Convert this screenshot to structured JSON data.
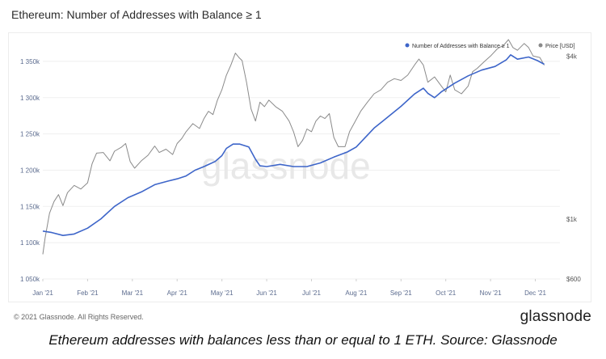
{
  "page": {
    "title": "Ethereum: Number of Addresses with Balance ≥ 1",
    "copyright": "© 2021 Glassnode. All Rights Reserved.",
    "brand": "glassnode",
    "watermark": "glassnode",
    "caption": "Ethereum addresses with balances less than or equal to 1 ETH. Source: Glassnode"
  },
  "chart_data": {
    "type": "line",
    "title": "Ethereum: Number of Addresses with Balance ≥ 1",
    "x_ticks": [
      "Jan '21",
      "Feb '21",
      "Mar '21",
      "Apr '21",
      "May '21",
      "Jun '21",
      "Jul '21",
      "Aug '21",
      "Sep '21",
      "Oct '21",
      "Nov '21",
      "Dec '21"
    ],
    "left_axis": {
      "ticks": [
        "1 050k",
        "1 100k",
        "1 150k",
        "1 200k",
        "1 250k",
        "1 300k",
        "1 350k"
      ],
      "tick_values": [
        1050000,
        1100000,
        1150000,
        1200000,
        1250000,
        1300000,
        1350000
      ],
      "ylim": [
        1050000,
        1380000
      ]
    },
    "right_axis": {
      "scale": "log",
      "ticks": [
        "$600",
        "$1k",
        "$4k"
      ],
      "tick_values": [
        600,
        1000,
        4000
      ],
      "ylim": [
        600,
        4600
      ]
    },
    "grid": true,
    "legend_position": "top-right",
    "series": [
      {
        "name": "Number of Addresses with Balance ≥ 1",
        "axis": "left",
        "color": "#3d65c9",
        "points": [
          [
            0.0,
            1116000
          ],
          [
            0.2,
            1114000
          ],
          [
            0.45,
            1110000
          ],
          [
            0.7,
            1112000
          ],
          [
            1.0,
            1120000
          ],
          [
            1.3,
            1133000
          ],
          [
            1.6,
            1150000
          ],
          [
            1.9,
            1162000
          ],
          [
            2.2,
            1170000
          ],
          [
            2.5,
            1180000
          ],
          [
            2.8,
            1185000
          ],
          [
            3.0,
            1188000
          ],
          [
            3.2,
            1192000
          ],
          [
            3.4,
            1200000
          ],
          [
            3.6,
            1205000
          ],
          [
            3.85,
            1212000
          ],
          [
            4.0,
            1220000
          ],
          [
            4.1,
            1230000
          ],
          [
            4.25,
            1236000
          ],
          [
            4.4,
            1236000
          ],
          [
            4.6,
            1232000
          ],
          [
            4.75,
            1215000
          ],
          [
            4.85,
            1206000
          ],
          [
            5.0,
            1205000
          ],
          [
            5.3,
            1208000
          ],
          [
            5.6,
            1205000
          ],
          [
            5.9,
            1205000
          ],
          [
            6.2,
            1210000
          ],
          [
            6.5,
            1218000
          ],
          [
            6.8,
            1225000
          ],
          [
            7.0,
            1232000
          ],
          [
            7.2,
            1245000
          ],
          [
            7.4,
            1258000
          ],
          [
            7.6,
            1268000
          ],
          [
            7.8,
            1278000
          ],
          [
            8.0,
            1288000
          ],
          [
            8.3,
            1305000
          ],
          [
            8.5,
            1313000
          ],
          [
            8.6,
            1306000
          ],
          [
            8.75,
            1300000
          ],
          [
            8.9,
            1308000
          ],
          [
            9.2,
            1320000
          ],
          [
            9.5,
            1330000
          ],
          [
            9.8,
            1338000
          ],
          [
            10.1,
            1343000
          ],
          [
            10.35,
            1352000
          ],
          [
            10.45,
            1359000
          ],
          [
            10.6,
            1353000
          ],
          [
            10.85,
            1356000
          ],
          [
            11.05,
            1351000
          ],
          [
            11.2,
            1346000
          ]
        ]
      },
      {
        "name": "Price [USD]",
        "axis": "right",
        "color": "#8a8a8a",
        "points": [
          [
            0.0,
            740
          ],
          [
            0.05,
            850
          ],
          [
            0.15,
            1050
          ],
          [
            0.25,
            1160
          ],
          [
            0.35,
            1230
          ],
          [
            0.45,
            1120
          ],
          [
            0.55,
            1250
          ],
          [
            0.7,
            1330
          ],
          [
            0.85,
            1290
          ],
          [
            1.0,
            1360
          ],
          [
            1.1,
            1600
          ],
          [
            1.2,
            1750
          ],
          [
            1.35,
            1760
          ],
          [
            1.5,
            1640
          ],
          [
            1.6,
            1780
          ],
          [
            1.75,
            1840
          ],
          [
            1.85,
            1900
          ],
          [
            1.95,
            1630
          ],
          [
            2.05,
            1540
          ],
          [
            2.2,
            1640
          ],
          [
            2.35,
            1720
          ],
          [
            2.5,
            1860
          ],
          [
            2.6,
            1760
          ],
          [
            2.75,
            1810
          ],
          [
            2.9,
            1730
          ],
          [
            3.0,
            1900
          ],
          [
            3.1,
            1980
          ],
          [
            3.2,
            2100
          ],
          [
            3.35,
            2250
          ],
          [
            3.5,
            2160
          ],
          [
            3.6,
            2350
          ],
          [
            3.7,
            2500
          ],
          [
            3.8,
            2430
          ],
          [
            3.9,
            2750
          ],
          [
            4.0,
            3000
          ],
          [
            4.1,
            3400
          ],
          [
            4.2,
            3700
          ],
          [
            4.3,
            4100
          ],
          [
            4.38,
            3950
          ],
          [
            4.45,
            3850
          ],
          [
            4.55,
            3200
          ],
          [
            4.65,
            2550
          ],
          [
            4.75,
            2300
          ],
          [
            4.85,
            2700
          ],
          [
            4.95,
            2600
          ],
          [
            5.05,
            2750
          ],
          [
            5.2,
            2600
          ],
          [
            5.35,
            2500
          ],
          [
            5.5,
            2300
          ],
          [
            5.6,
            2100
          ],
          [
            5.7,
            1850
          ],
          [
            5.8,
            1950
          ],
          [
            5.9,
            2150
          ],
          [
            6.0,
            2100
          ],
          [
            6.1,
            2300
          ],
          [
            6.2,
            2400
          ],
          [
            6.3,
            2350
          ],
          [
            6.4,
            2450
          ],
          [
            6.5,
            2000
          ],
          [
            6.6,
            1850
          ],
          [
            6.75,
            1850
          ],
          [
            6.85,
            2100
          ],
          [
            6.95,
            2250
          ],
          [
            7.1,
            2500
          ],
          [
            7.25,
            2700
          ],
          [
            7.4,
            2900
          ],
          [
            7.55,
            3000
          ],
          [
            7.7,
            3200
          ],
          [
            7.85,
            3300
          ],
          [
            8.0,
            3250
          ],
          [
            8.15,
            3400
          ],
          [
            8.3,
            3700
          ],
          [
            8.4,
            3900
          ],
          [
            8.5,
            3700
          ],
          [
            8.6,
            3200
          ],
          [
            8.75,
            3350
          ],
          [
            8.9,
            3100
          ],
          [
            9.0,
            2950
          ],
          [
            9.1,
            3400
          ],
          [
            9.2,
            3000
          ],
          [
            9.35,
            2900
          ],
          [
            9.5,
            3100
          ],
          [
            9.6,
            3500
          ],
          [
            9.7,
            3600
          ],
          [
            9.85,
            3800
          ],
          [
            10.0,
            4000
          ],
          [
            10.15,
            4250
          ],
          [
            10.3,
            4400
          ],
          [
            10.4,
            4600
          ],
          [
            10.5,
            4300
          ],
          [
            10.6,
            4200
          ],
          [
            10.75,
            4450
          ],
          [
            10.85,
            4300
          ],
          [
            10.95,
            4000
          ],
          [
            11.1,
            3950
          ],
          [
            11.2,
            3700
          ]
        ]
      }
    ]
  }
}
